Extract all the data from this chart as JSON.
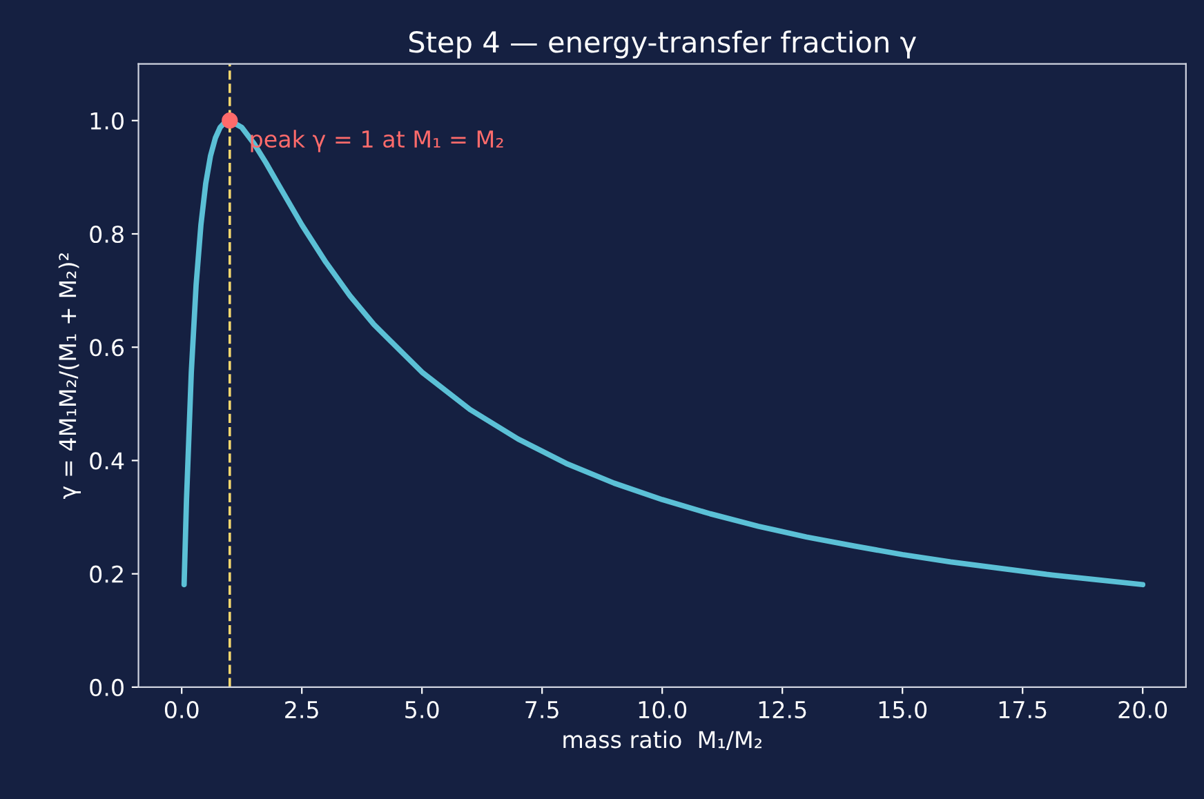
{
  "chart_data": {
    "type": "line",
    "title": "Step 4 — energy-transfer fraction γ",
    "xlabel": "mass ratio  M₁/M₂",
    "ylabel": "γ = 4M₁M₂/(M₁ + M₂)²",
    "series": [
      {
        "color": "#5bc0d6",
        "x": [
          0.05,
          0.1,
          0.2,
          0.3,
          0.4,
          0.5,
          0.6,
          0.7,
          0.8,
          0.9,
          1.0,
          1.25,
          1.5,
          1.75,
          2.0,
          2.5,
          3.0,
          3.5,
          4.0,
          5.0,
          6.0,
          7.0,
          8.0,
          9.0,
          10.0,
          11.0,
          12.0,
          13.0,
          14.0,
          15.0,
          16.0,
          17.0,
          18.0,
          19.0,
          20.0
        ],
        "values": [
          0.181,
          0.331,
          0.556,
          0.71,
          0.816,
          0.889,
          0.938,
          0.969,
          0.988,
          0.997,
          1.0,
          0.988,
          0.96,
          0.926,
          0.889,
          0.816,
          0.75,
          0.691,
          0.64,
          0.556,
          0.49,
          0.438,
          0.395,
          0.36,
          0.331,
          0.306,
          0.284,
          0.265,
          0.249,
          0.234,
          0.221,
          0.21,
          0.199,
          0.19,
          0.181
        ]
      },
      {
        "type": "scatter",
        "color": "#ff6b6b",
        "x": [
          1.0
        ],
        "values": [
          1.0
        ]
      }
    ],
    "ref_lines": [
      {
        "axis": "x",
        "value": 1.0,
        "color": "#f5d76e",
        "line_style": "dashed"
      }
    ],
    "annotations": [
      {
        "text": "peak γ = 1 at M₁ = M₂",
        "x": 1.0,
        "y": 1.0
      }
    ],
    "xlim": [
      -0.9,
      20.9
    ],
    "ylim": [
      0.0,
      1.1
    ],
    "xticks": [
      {
        "value": 0,
        "label": "0.0"
      },
      2.5,
      {
        "value": 5,
        "label": "5.0"
      },
      7.5,
      {
        "value": 10,
        "label": "10.0"
      },
      12.5,
      {
        "value": 15,
        "label": "15.0"
      },
      17.5,
      {
        "value": 20,
        "label": "20.0"
      }
    ],
    "yticks": [
      {
        "value": 0,
        "label": "0.0"
      },
      0.2,
      0.4,
      0.6,
      0.8,
      {
        "value": 1,
        "label": "1.0"
      }
    ],
    "grid": false,
    "legend": false
  }
}
